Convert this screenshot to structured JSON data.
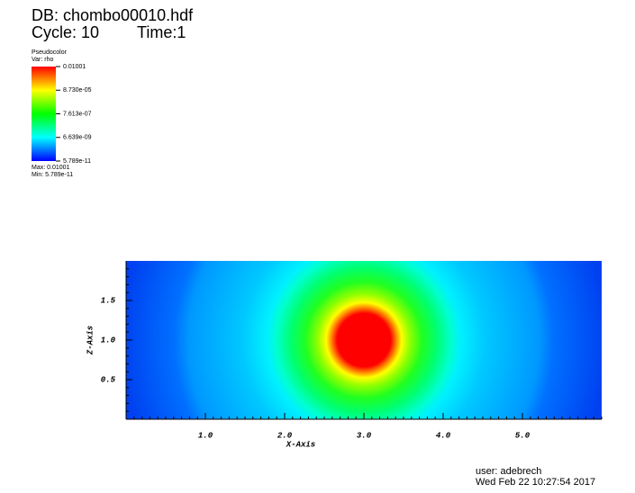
{
  "chart_data": {
    "type": "pseudocolor",
    "header": {
      "db": "DB: chombo00010.hdf",
      "cycle": "Cycle: 10",
      "time": "Time:1"
    },
    "legend": {
      "title": "Pseudocolor",
      "variable": "Var: rho",
      "tick_labels": [
        "0.01001",
        "8.730e-05",
        "7.613e-07",
        "6.639e-09",
        "5.789e-11"
      ],
      "max": "Max: 0.01001",
      "min": "Min: 5.789e-11"
    },
    "x_label": "X-Axis",
    "y_label": "Z-Axis",
    "xlim": [
      0,
      6
    ],
    "ylim": [
      0,
      2
    ],
    "xticks": [
      {
        "value": 1,
        "label": "1.0"
      },
      {
        "value": 2,
        "label": "2.0"
      },
      {
        "value": 3,
        "label": "3.0"
      },
      {
        "value": 4,
        "label": "4.0"
      },
      {
        "value": 5,
        "label": "5.0"
      }
    ],
    "yticks": [
      {
        "value": 0.5,
        "label": "0.5"
      },
      {
        "value": 1,
        "label": "1.0"
      },
      {
        "value": 1.5,
        "label": "1.5"
      }
    ],
    "user": "user: adebrech",
    "date": "Wed Feb 22 10:27:54 2017"
  }
}
